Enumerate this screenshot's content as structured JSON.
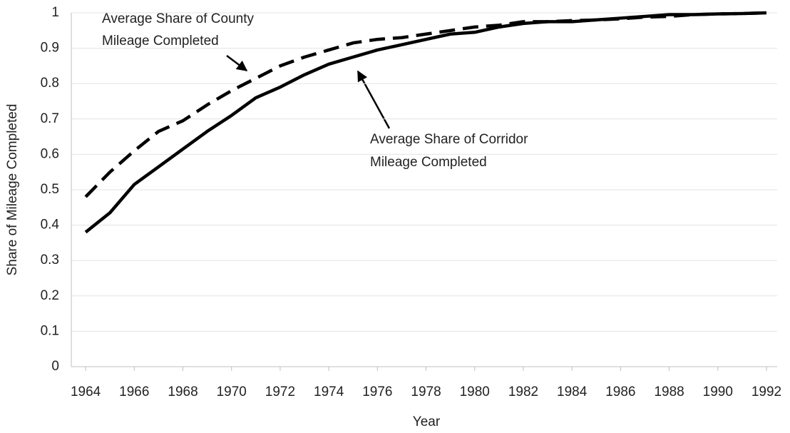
{
  "chart_data": {
    "type": "line",
    "x_label": "Year",
    "y_label": "Share of Mileage Completed",
    "x": [
      1964,
      1965,
      1966,
      1967,
      1968,
      1969,
      1970,
      1971,
      1972,
      1973,
      1974,
      1975,
      1976,
      1977,
      1978,
      1979,
      1980,
      1981,
      1982,
      1983,
      1984,
      1985,
      1986,
      1987,
      1988,
      1989,
      1990,
      1991,
      1992
    ],
    "series": [
      {
        "color": "#000000",
        "line_style": "dashed",
        "values": [
          0.48,
          0.55,
          0.61,
          0.665,
          0.695,
          0.74,
          0.78,
          0.815,
          0.85,
          0.875,
          0.895,
          0.915,
          0.925,
          0.93,
          0.94,
          0.95,
          0.96,
          0.965,
          0.975,
          0.975,
          0.978,
          0.98,
          0.983,
          0.988,
          0.99,
          0.995,
          0.997,
          0.998,
          1.0
        ]
      },
      {
        "color": "#000000",
        "line_style": "solid",
        "values": [
          0.38,
          0.435,
          0.515,
          0.565,
          0.615,
          0.665,
          0.71,
          0.76,
          0.79,
          0.825,
          0.855,
          0.875,
          0.895,
          0.91,
          0.925,
          0.94,
          0.945,
          0.96,
          0.97,
          0.975,
          0.975,
          0.98,
          0.985,
          0.99,
          0.995,
          0.995,
          0.997,
          0.998,
          1.0
        ]
      }
    ],
    "annotations": [
      {
        "lines": [
          "Average Share of County",
          "Mileage Completed"
        ]
      },
      {
        "lines": [
          "Average Share of Corridor",
          "Mileage Completed"
        ]
      }
    ],
    "xlim": [
      1963.41,
      1992.44
    ],
    "xticks": [
      1964,
      1966,
      1968,
      1970,
      1972,
      1974,
      1976,
      1978,
      1980,
      1982,
      1984,
      1986,
      1988,
      1990,
      1992
    ],
    "ylim": [
      0,
      1
    ],
    "yticks": [
      0,
      0.1,
      0.2,
      0.3,
      0.4,
      0.5,
      0.6,
      0.7,
      0.8,
      0.9,
      1
    ],
    "grid": true
  }
}
